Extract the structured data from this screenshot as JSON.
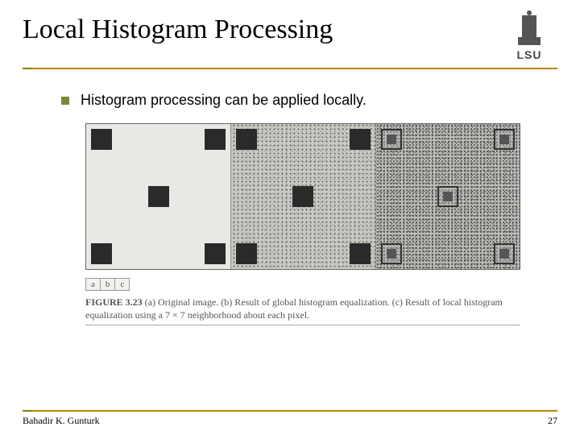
{
  "title": "Local Histogram Processing",
  "logo": {
    "text": "LSU"
  },
  "bullet": {
    "text": "Histogram processing can be applied locally."
  },
  "figure": {
    "labels": [
      "a",
      "b",
      "c"
    ],
    "caption_lead": "FIGURE 3.23",
    "caption_body": "(a) Original image. (b) Result of global histogram equalization. (c) Result of local histogram equalization using a 7 × 7 neighborhood about each pixel.",
    "panels": {
      "a": {
        "background": "#e8e8e4",
        "square_color": "#2a2a2a",
        "square_size": 26
      },
      "b": {
        "background": "#c9c9c3",
        "square_color": "#2a2a2a",
        "square_size": 26,
        "noise_opacity": 0.6
      },
      "c": {
        "background": "#bdbdb8",
        "outline_color": "#333333",
        "inner_color": "#555555",
        "noise_opacity": 0.75
      }
    }
  },
  "footer": {
    "author": "Bahadir K. Gunturk",
    "page_number": "27"
  },
  "colors": {
    "accent_line": "#b8860b",
    "accent_block": "#808000",
    "bullet_square": "#7a8a3a"
  }
}
